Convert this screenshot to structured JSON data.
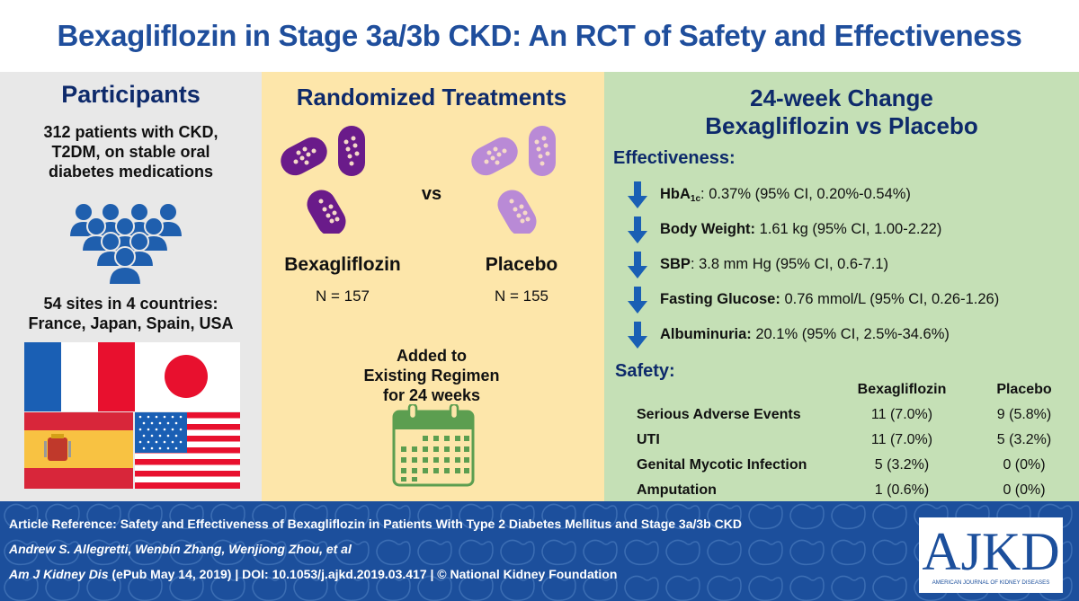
{
  "title": "Bexagliflozin in Stage 3a/3b CKD: An RCT of Safety and Effectiveness",
  "participants": {
    "heading": "Participants",
    "description_lines": [
      "312 patients with CKD,",
      "T2DM, on stable oral",
      "diabetes medications"
    ],
    "icon": "people-group-icon",
    "sites_lines": [
      "54 sites in 4 countries:",
      "France, Japan, Spain, USA"
    ],
    "flags": [
      "france-flag",
      "japan-flag",
      "spain-flag",
      "usa-flag"
    ]
  },
  "treatments": {
    "heading": "Randomized Treatments",
    "vs": "vs",
    "arms": [
      {
        "name": "Bexagliflozin",
        "n": "N = 157",
        "pill_color": "#6a1b8a"
      },
      {
        "name": "Placebo",
        "n": "N = 155",
        "pill_color": "#b98ad6"
      }
    ],
    "added_lines": [
      "Added to",
      "Existing Regimen",
      "for 24 weeks"
    ],
    "calendar_color": "#5c9e50"
  },
  "results": {
    "heading_lines": [
      "24-week Change",
      "Bexagliflozin vs Placebo"
    ],
    "effectiveness_heading": "Effectiveness:",
    "effectiveness": [
      {
        "label": "HbA",
        "sub": "1c",
        "sep": ":",
        "value": " 0.37% (95% CI, 0.20%-0.54%)"
      },
      {
        "label": "Body Weight:",
        "sub": "",
        "sep": "",
        "value": " 1.61 kg (95% CI, 1.00-2.22)"
      },
      {
        "label": "SBP",
        "sub": "",
        "sep": ":",
        "value": " 3.8 mm Hg (95% CI, 0.6-7.1)"
      },
      {
        "label": "Fasting Glucose:",
        "sub": "",
        "sep": "",
        "value": " 0.76 mmol/L (95% CI, 0.26-1.26)"
      },
      {
        "label": "Albuminuria:",
        "sub": "",
        "sep": "",
        "value": " 20.1% (95% CI, 2.5%-34.6%)"
      }
    ],
    "safety_heading": "Safety:",
    "safety_columns": [
      "Bexagliflozin",
      "Placebo"
    ],
    "safety_rows": [
      {
        "event": "Serious Adverse Events",
        "bexagliflozin": "11 (7.0%)",
        "placebo": "9 (5.8%)"
      },
      {
        "event": "UTI",
        "bexagliflozin": "11 (7.0%)",
        "placebo": "5 (3.2%)"
      },
      {
        "event": "Genital Mycotic Infection",
        "bexagliflozin": "5 (3.2%)",
        "placebo": "0 (0%)"
      },
      {
        "event": "Amputation",
        "bexagliflozin": "1 (0.6%)",
        "placebo": "0 (0%)"
      }
    ]
  },
  "footer": {
    "reference": "Article Reference: Safety and Effectiveness of Bexagliflozin in Patients With Type 2 Diabetes Mellitus and Stage 3a/3b CKD",
    "authors": "Andrew S. Allegretti, Wenbin Zhang, Wenjiong Zhou, et al",
    "journal": "Am J Kidney Dis",
    "citation": " (ePub May 14, 2019) | DOI: 10.1053/j.ajkd.2019.03.417 | © National Kidney Foundation",
    "logo_text": "AJKD",
    "logo_subtitle": "AMERICAN JOURNAL OF KIDNEY DISEASES"
  },
  "colors": {
    "title_blue": "#1f4e9c",
    "heading_navy": "#0e2a6b",
    "arrow_blue": "#1a5fb4",
    "footer_blue": "#1c4f9c"
  }
}
